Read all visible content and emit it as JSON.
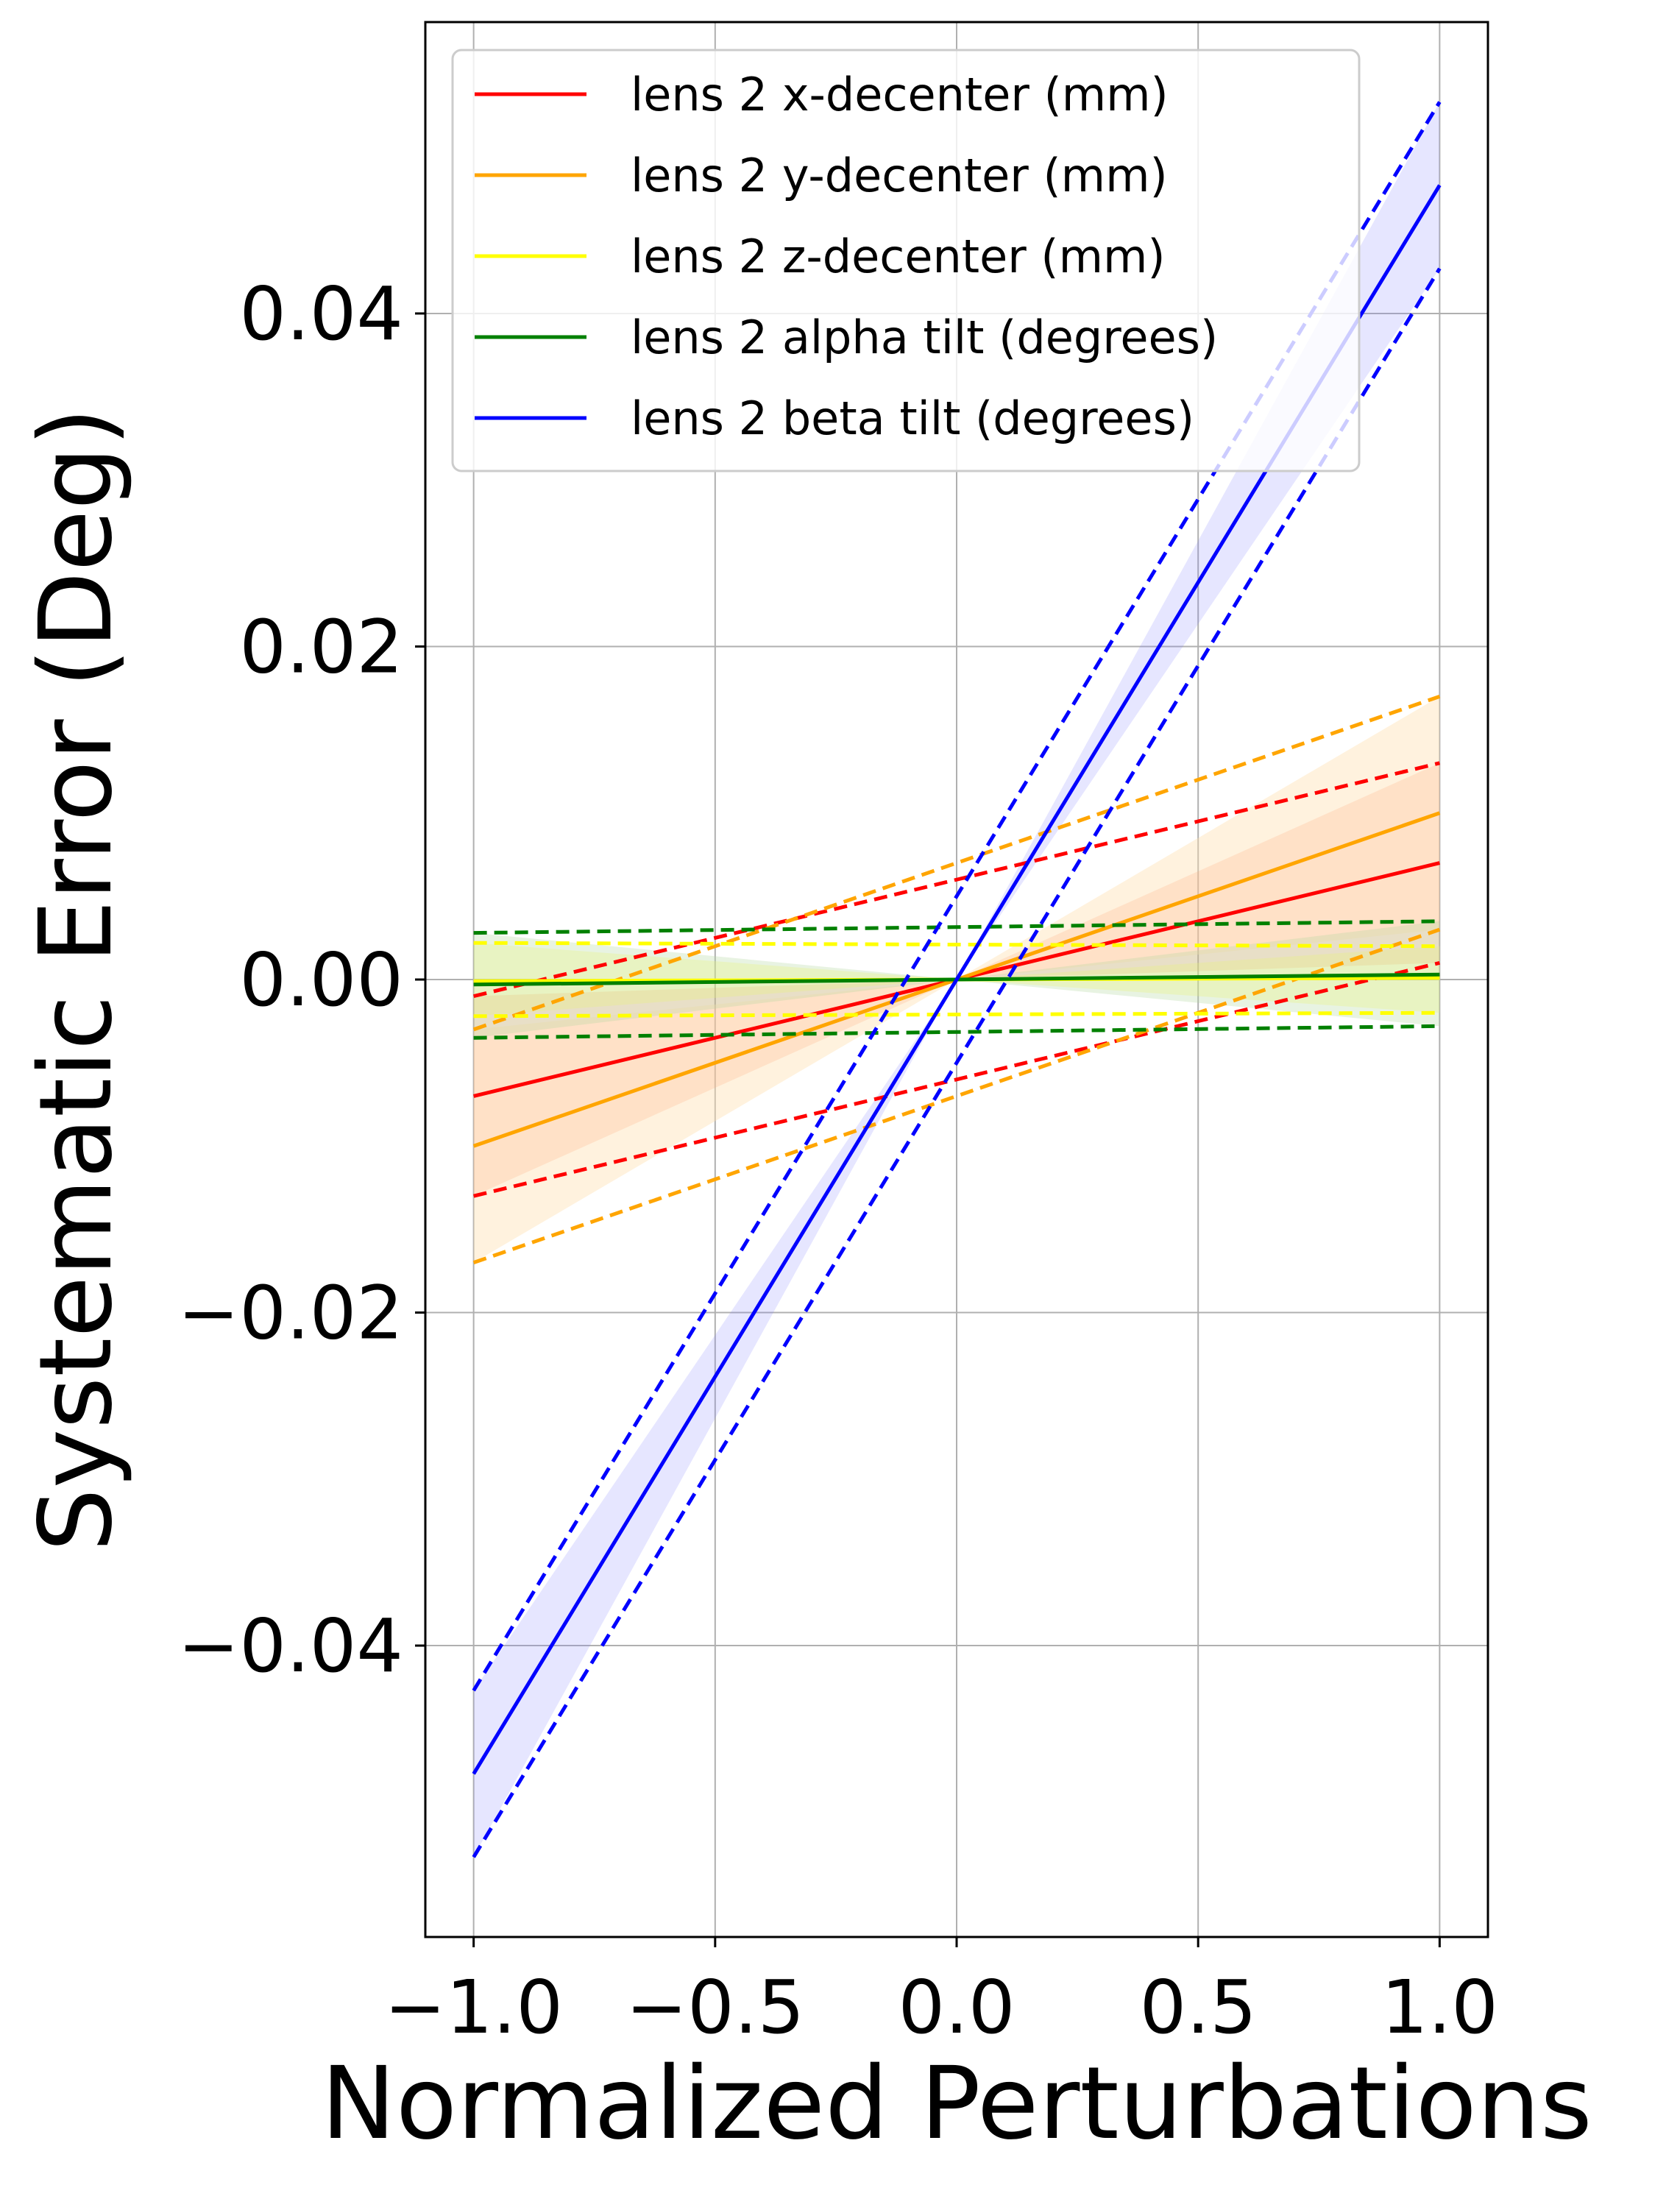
{
  "chart_data": {
    "type": "line",
    "title": "",
    "xlabel": "Normalized Perturbations",
    "ylabel": "Systematic Error (Deg)",
    "xlim": [
      -1.1,
      1.1
    ],
    "ylim": [
      -0.0575,
      0.0575
    ],
    "grid": true,
    "legend_position": "top-left",
    "x_ticks": [
      -1.0,
      -0.5,
      0.0,
      0.5,
      1.0
    ],
    "x_tick_labels": [
      "−1.0",
      "−0.5",
      "0.0",
      "0.5",
      "1.0"
    ],
    "y_ticks": [
      -0.04,
      -0.02,
      0.0,
      0.02,
      0.04
    ],
    "y_tick_labels": [
      "−0.04",
      "−0.02",
      "0.00",
      "0.02",
      "0.04"
    ],
    "series": [
      {
        "name": "lens 2 x-decenter (mm)",
        "color": "#ff0000",
        "fill_color": "#ff7f50",
        "fill_opacity": 0.22,
        "x": [
          -1.0,
          1.0
        ],
        "y": [
          -0.007,
          0.007
        ],
        "y_low": [
          -0.013,
          0.001
        ],
        "y_high": [
          -0.001,
          0.013
        ]
      },
      {
        "name": "lens 2 y-decenter (mm)",
        "color": "#ffa500",
        "fill_color": "#ffdead",
        "fill_opacity": 0.4,
        "x": [
          -1.0,
          1.0
        ],
        "y": [
          -0.01,
          0.01
        ],
        "y_low": [
          -0.017,
          0.003
        ],
        "y_high": [
          -0.003,
          0.017
        ]
      },
      {
        "name": "lens 2 z-decenter (mm)",
        "color": "#ffff00",
        "fill_color": "#ffff66",
        "fill_opacity": 0.3,
        "x": [
          -1.0,
          1.0
        ],
        "y": [
          -0.0001,
          0.0001
        ],
        "y_low": [
          -0.0022,
          -0.002
        ],
        "y_high": [
          0.0022,
          0.002
        ]
      },
      {
        "name": "lens 2 alpha tilt (degrees)",
        "color": "#008000",
        "fill_color": "#b2d8a0",
        "fill_opacity": 0.3,
        "x": [
          -1.0,
          1.0
        ],
        "y": [
          -0.0003,
          0.0003
        ],
        "y_low": [
          -0.0035,
          -0.0028
        ],
        "y_high": [
          0.0028,
          0.0035
        ]
      },
      {
        "name": "lens 2 beta tilt (degrees)",
        "color": "#0000ff",
        "fill_color": "#8080ff",
        "fill_opacity": 0.2,
        "x": [
          -1.0,
          1.0
        ],
        "y": [
          -0.0477,
          0.0477
        ],
        "y_low": [
          -0.0527,
          0.0427
        ],
        "y_high": [
          -0.0427,
          0.0527
        ]
      }
    ]
  }
}
